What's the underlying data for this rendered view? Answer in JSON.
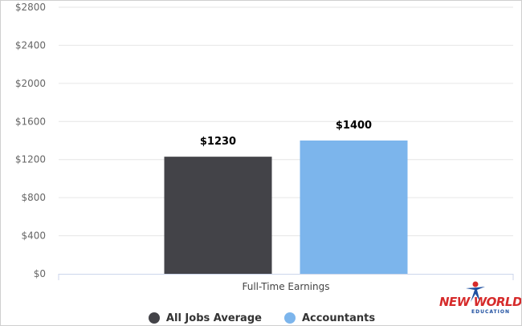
{
  "chart_data": {
    "type": "bar",
    "categories": [
      "Full-Time Earnings"
    ],
    "series": [
      {
        "name": "All Jobs Average",
        "values": [
          1230
        ],
        "color": "#434348",
        "value_label": "$1230"
      },
      {
        "name": "Accountants",
        "values": [
          1400
        ],
        "color": "#7cb5ec",
        "value_label": "$1400"
      }
    ],
    "title": "",
    "xlabel": "",
    "ylabel": "",
    "ylim": [
      0,
      2800
    ],
    "y_ticks": [
      0,
      400,
      800,
      1200,
      1600,
      2000,
      2400,
      2800
    ],
    "y_tick_labels": [
      "$0",
      "$400",
      "$800",
      "$1200",
      "$1600",
      "$2000",
      "$2400",
      "$2800"
    ],
    "grid": true,
    "legend_position": "bottom-center"
  },
  "logo": {
    "main_text": "NEW WORLD",
    "sub_text": "EDUCATION",
    "icon": "star-figure-icon",
    "colors": {
      "primary": "#d62b2b",
      "secondary": "#1e4fa0"
    }
  }
}
